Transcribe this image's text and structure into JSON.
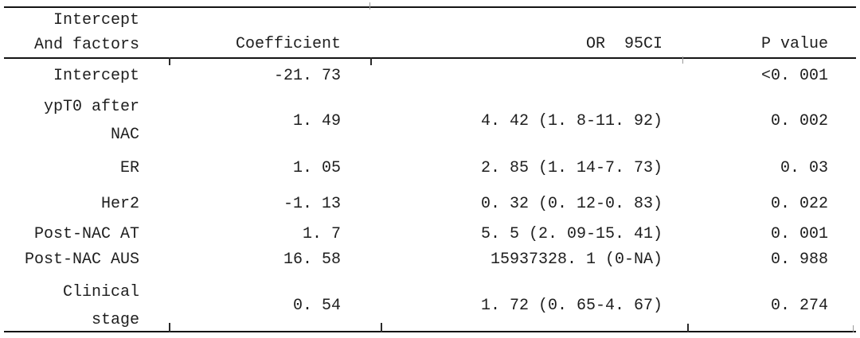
{
  "colors": {
    "background": "#ffffff",
    "text": "#1e1e1e",
    "rule": "#141414"
  },
  "table": {
    "header": {
      "factors": "Intercept\nAnd factors",
      "coefficient": "Coefficient",
      "or_95ci": "OR  95CI",
      "p_value": "P value"
    },
    "rows": [
      {
        "factor": "Intercept",
        "coefficient": "-21. 73",
        "or_95ci": "",
        "p_value": "<0. 001"
      },
      {
        "factor": "ypT0 after\nNAC",
        "coefficient": "1. 49",
        "or_95ci": "4. 42 (1. 8-11. 92)",
        "p_value": "0. 002"
      },
      {
        "factor": "ER",
        "coefficient": "1. 05",
        "or_95ci": "2. 85 (1. 14-7. 73)",
        "p_value": "0. 03"
      },
      {
        "factor": "Her2",
        "coefficient": "-1. 13",
        "or_95ci": "0. 32 (0. 12-0. 83)",
        "p_value": "0. 022"
      },
      {
        "factor": "Post-NAC AT",
        "coefficient": "1. 7",
        "or_95ci": "5. 5 (2. 09-15. 41)",
        "p_value": "0. 001"
      },
      {
        "factor": "Post-NAC AUS",
        "coefficient": "16. 58",
        "or_95ci": "15937328. 1 (0-NA)",
        "p_value": "0. 988"
      },
      {
        "factor": "Clinical\nstage",
        "coefficient": "0. 54",
        "or_95ci": "1. 72 (0. 65-4. 67)",
        "p_value": "0. 274"
      }
    ]
  }
}
